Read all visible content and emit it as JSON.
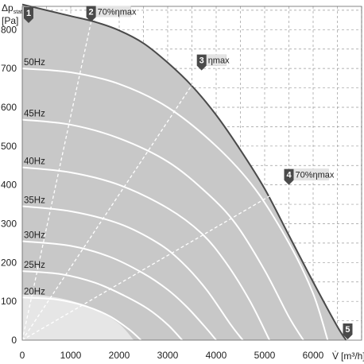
{
  "chart_data": {
    "type": "line",
    "title": "",
    "y_axis_label": {
      "symbol": "Δp",
      "subscript": "stat",
      "unit": "[Pa]"
    },
    "x_axis_label": {
      "symbol": "V̇",
      "unit": "[m³/h]"
    },
    "xlim": [
      0,
      7000
    ],
    "ylim": [
      0,
      860
    ],
    "x_ticks": [
      0,
      1000,
      2000,
      3000,
      4000,
      5000,
      6000
    ],
    "y_ticks": [
      0,
      100,
      200,
      300,
      400,
      500,
      600,
      700,
      800
    ],
    "grid": true,
    "colors": {
      "envelope_fill": "#c8c8c8",
      "envelope_line": "#4a4a4a",
      "low_region": "#e6e6e6",
      "hz_curve": "#ffffff",
      "marker_fill": "#4a4a4a"
    },
    "envelope": {
      "x": [
        0,
        500,
        1000,
        1500,
        2000,
        2500,
        3000,
        3500,
        4000,
        4500,
        5000,
        5500,
        6000,
        6500,
        6680
      ],
      "y": [
        865,
        850,
        835,
        820,
        798,
        765,
        715,
        655,
        580,
        490,
        390,
        270,
        150,
        35,
        0
      ]
    },
    "low_region": {
      "x": [
        0,
        500,
        1000,
        1500,
        2000,
        2300
      ],
      "y": [
        118,
        114,
        102,
        80,
        42,
        0
      ]
    },
    "series": [
      {
        "name": "50Hz",
        "x": [
          0,
          1000,
          2000,
          3000,
          4000,
          4800,
          5500,
          6000,
          6300
        ],
        "y": [
          700,
          690,
          660,
          600,
          500,
          390,
          250,
          120,
          0
        ]
      },
      {
        "name": "45Hz",
        "x": [
          0,
          1000,
          2000,
          3000,
          3800,
          4400,
          5000,
          5500,
          5800
        ],
        "y": [
          568,
          555,
          520,
          460,
          380,
          300,
          180,
          60,
          0
        ]
      },
      {
        "name": "40Hz",
        "x": [
          0,
          1000,
          2000,
          3000,
          3700,
          4200,
          4700,
          5100
        ],
        "y": [
          445,
          432,
          400,
          340,
          275,
          200,
          100,
          0
        ]
      },
      {
        "name": "35Hz",
        "x": [
          0,
          1000,
          2000,
          2800,
          3300,
          3800,
          4300,
          4550
        ],
        "y": [
          345,
          332,
          300,
          250,
          200,
          130,
          40,
          0
        ]
      },
      {
        "name": "30Hz",
        "x": [
          0,
          1000,
          1800,
          2500,
          3000,
          3400,
          3800,
          4000
        ],
        "y": [
          255,
          243,
          215,
          172,
          130,
          85,
          30,
          0
        ]
      },
      {
        "name": "25Hz",
        "x": [
          0,
          800,
          1500,
          2100,
          2600,
          3000,
          3300
        ],
        "y": [
          178,
          170,
          148,
          115,
          80,
          40,
          0
        ]
      },
      {
        "name": "20Hz",
        "x": [
          0,
          700,
          1300,
          1800,
          2200,
          2450
        ],
        "y": [
          110,
          105,
          88,
          62,
          28,
          0
        ]
      }
    ],
    "efficiency_lines": [
      {
        "label": "70%ηmax",
        "x": [
          0,
          1420
        ],
        "y": [
          0,
          820
        ]
      },
      {
        "label": "ηmax",
        "x": [
          0,
          3700
        ],
        "y": [
          0,
          695
        ]
      },
      {
        "label": "70%ηmax",
        "x": [
          0,
          5500
        ],
        "y": [
          0,
          400
        ]
      }
    ],
    "markers": [
      {
        "num": "1",
        "text": "",
        "x": 0,
        "y": 865
      },
      {
        "num": "2",
        "text": "70%ηmax",
        "x": 1420,
        "y": 820
      },
      {
        "num": "3",
        "text": "ηmax",
        "x": 3700,
        "y": 695
      },
      {
        "num": "4",
        "text": "70%ηmax",
        "x": 5500,
        "y": 400
      },
      {
        "num": "5",
        "text": "",
        "x": 6680,
        "y": 0
      }
    ]
  }
}
